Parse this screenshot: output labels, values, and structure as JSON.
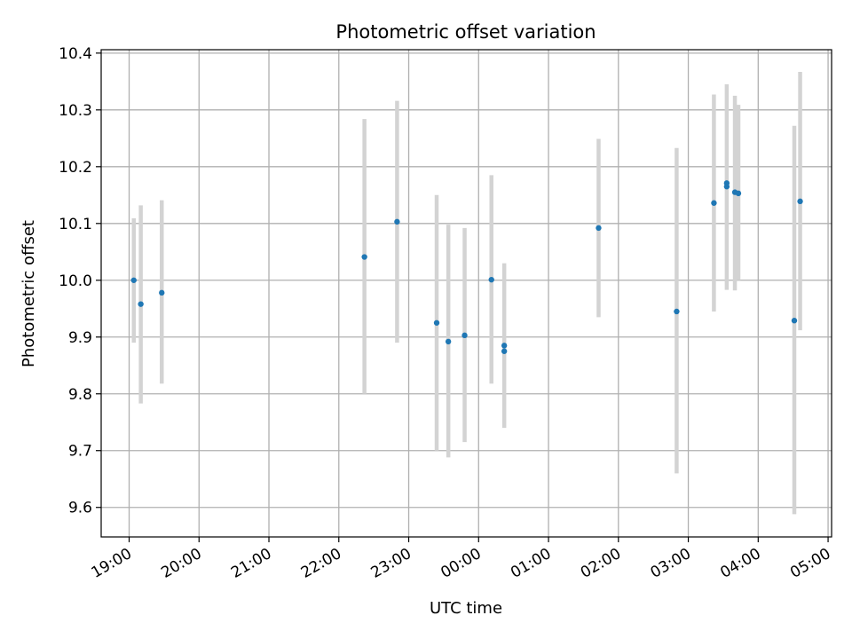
{
  "chart_data": {
    "type": "scatter",
    "title": "Photometric offset variation",
    "xlabel": "UTC time",
    "ylabel": "Photometric offset",
    "grid": true,
    "colors": {
      "points": "#1f77b4",
      "errorbars": "#d3d3d3",
      "grid": "#b0b0b0",
      "axes": "#000000"
    },
    "xlim_hours": [
      18.6,
      29.05
    ],
    "ylim": [
      9.548,
      10.406
    ],
    "x_ticks": [
      {
        "hour": 19,
        "label": "19:00"
      },
      {
        "hour": 20,
        "label": "20:00"
      },
      {
        "hour": 21,
        "label": "21:00"
      },
      {
        "hour": 22,
        "label": "22:00"
      },
      {
        "hour": 23,
        "label": "23:00"
      },
      {
        "hour": 24,
        "label": "00:00"
      },
      {
        "hour": 25,
        "label": "01:00"
      },
      {
        "hour": 26,
        "label": "02:00"
      },
      {
        "hour": 27,
        "label": "03:00"
      },
      {
        "hour": 28,
        "label": "04:00"
      },
      {
        "hour": 29,
        "label": "05:00"
      }
    ],
    "y_ticks": [
      {
        "value": 9.6,
        "label": "9.6"
      },
      {
        "value": 9.7,
        "label": "9.7"
      },
      {
        "value": 9.8,
        "label": "9.8"
      },
      {
        "value": 9.9,
        "label": "9.9"
      },
      {
        "value": 10.0,
        "label": "10.0"
      },
      {
        "value": 10.1,
        "label": "10.1"
      },
      {
        "value": 10.2,
        "label": "10.2"
      },
      {
        "value": 10.3,
        "label": "10.3"
      },
      {
        "value": 10.4,
        "label": "10.4"
      }
    ],
    "points": [
      {
        "time": "19:04",
        "y": 10.0,
        "err_low": 9.89,
        "err_high": 10.109
      },
      {
        "time": "19:10",
        "y": 9.958,
        "err_low": 9.783,
        "err_high": 10.132
      },
      {
        "time": "19:28",
        "y": 9.978,
        "err_low": 9.818,
        "err_high": 10.141
      },
      {
        "time": "22:22",
        "y": 10.041,
        "err_low": 9.8,
        "err_high": 10.284
      },
      {
        "time": "22:50",
        "y": 10.103,
        "err_low": 9.89,
        "err_high": 10.316
      },
      {
        "time": "23:24",
        "y": 9.925,
        "err_low": 9.7,
        "err_high": 10.15
      },
      {
        "time": "23:34",
        "y": 9.892,
        "err_low": 9.688,
        "err_high": 10.098
      },
      {
        "time": "23:48",
        "y": 9.903,
        "err_low": 9.715,
        "err_high": 10.092
      },
      {
        "time": "00:11",
        "y": 10.001,
        "err_low": 9.818,
        "err_high": 10.185
      },
      {
        "time": "00:22",
        "y": 9.885,
        "err_low": 9.74,
        "err_high": 10.03
      },
      {
        "time": "00:22",
        "y": 9.875
      },
      {
        "time": "01:43",
        "y": 10.092,
        "err_low": 9.935,
        "err_high": 10.249
      },
      {
        "time": "02:50",
        "y": 9.945,
        "err_low": 9.66,
        "err_high": 10.233
      },
      {
        "time": "03:22",
        "y": 10.136,
        "err_low": 9.945,
        "err_high": 10.327
      },
      {
        "time": "03:33",
        "y": 10.171,
        "err_low": 9.983,
        "err_high": 10.345
      },
      {
        "time": "03:33",
        "y": 10.165
      },
      {
        "time": "03:40",
        "y": 10.155,
        "err_low": 9.982,
        "err_high": 10.325
      },
      {
        "time": "03:43",
        "y": 10.153,
        "err_low": 10.0,
        "err_high": 10.309
      },
      {
        "time": "04:31",
        "y": 9.929,
        "err_low": 9.588,
        "err_high": 10.272
      },
      {
        "time": "04:36",
        "y": 10.139,
        "err_low": 9.912,
        "err_high": 10.367
      }
    ]
  }
}
